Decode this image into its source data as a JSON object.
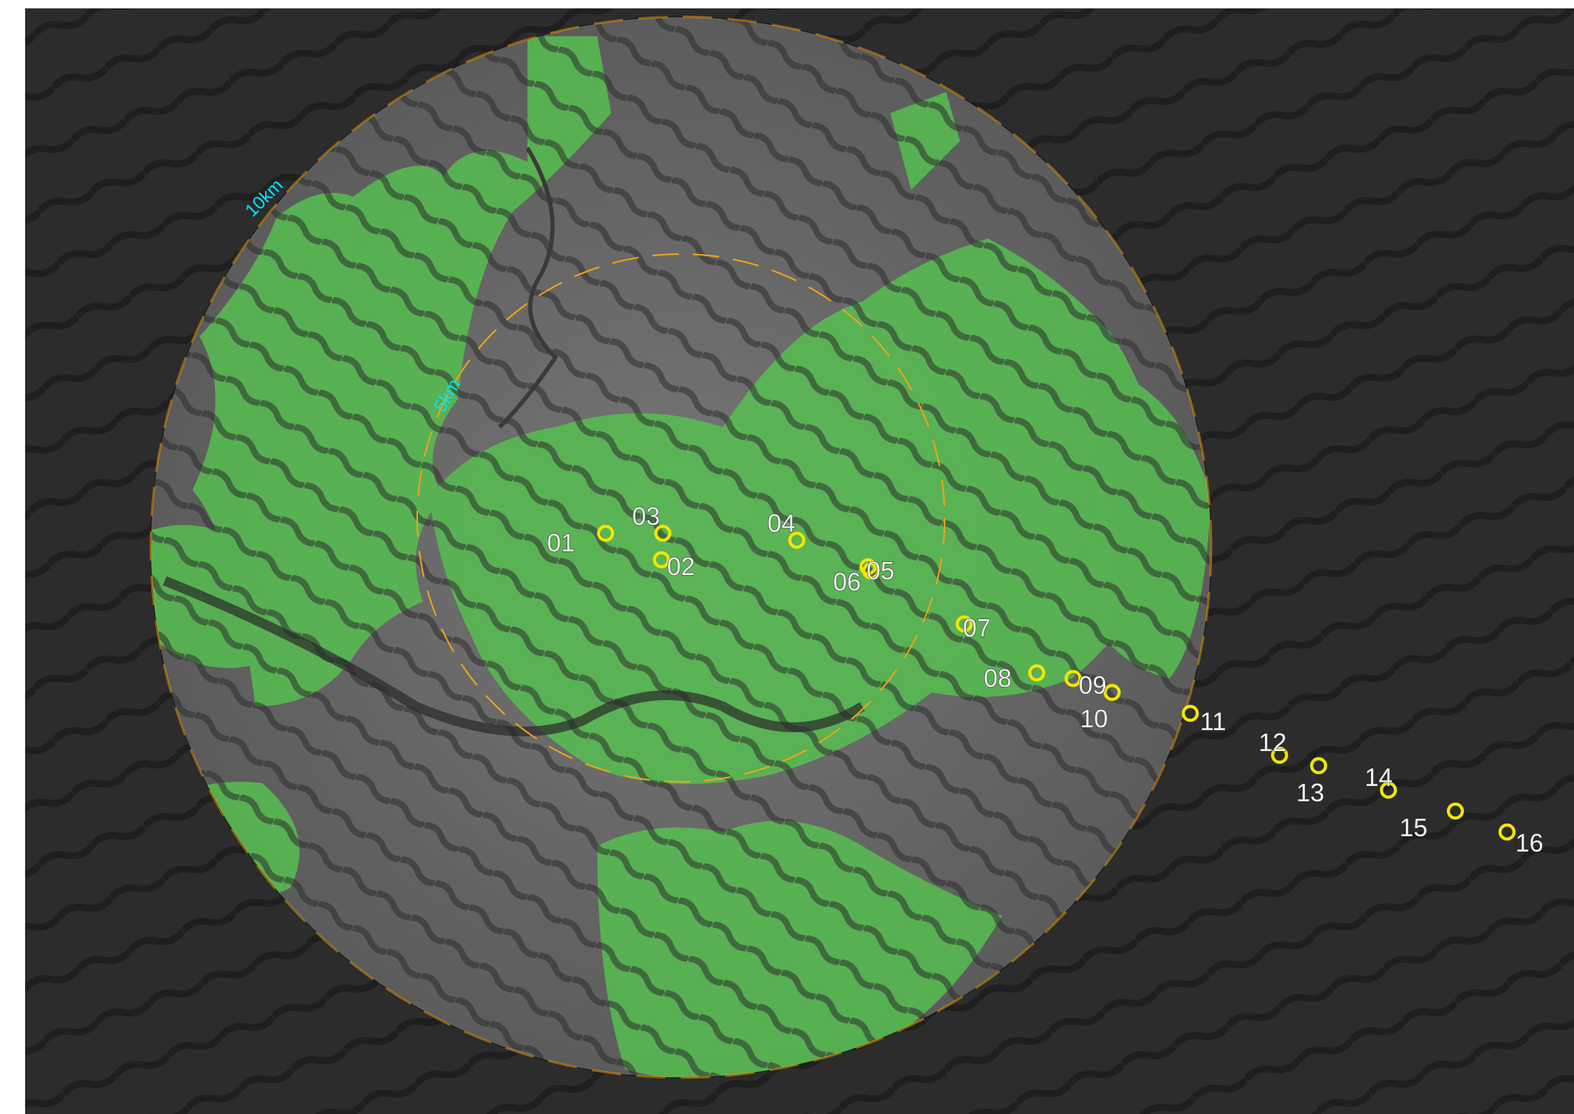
{
  "map": {
    "title": "",
    "colors": {
      "background": "#1c1c1c",
      "terrain_dark": "#2c2c2c",
      "terrain_light": "#6e6e6e",
      "vegetation": "#55c24f",
      "ring": "#f0a418",
      "ring_label": "#00e5ff",
      "site_marker": "#f2e600",
      "site_label": "#f2f2f2"
    },
    "rings": [
      {
        "label": "10km",
        "radius_km": 10
      },
      {
        "label": "5km",
        "radius_km": 5
      }
    ],
    "sites": [
      {
        "label": "01"
      },
      {
        "label": "02"
      },
      {
        "label": "03"
      },
      {
        "label": "04"
      },
      {
        "label": "05"
      },
      {
        "label": "06"
      },
      {
        "label": "07"
      },
      {
        "label": "08"
      },
      {
        "label": "09"
      },
      {
        "label": "10"
      },
      {
        "label": "11"
      },
      {
        "label": "12"
      },
      {
        "label": "13"
      },
      {
        "label": "14"
      },
      {
        "label": "15"
      },
      {
        "label": "16"
      }
    ]
  }
}
